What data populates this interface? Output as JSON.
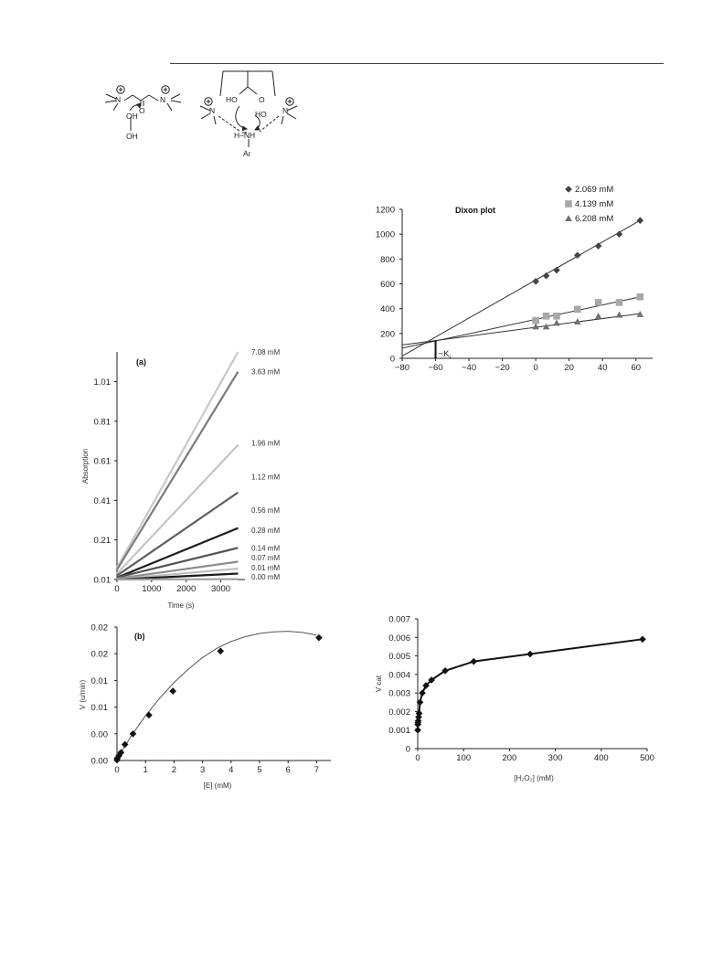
{
  "chart_data": [
    {
      "id": "dixon",
      "type": "scatter",
      "title": "Dixon plot",
      "xlabel": "",
      "ylabel": "",
      "xlim": [
        -80,
        70
      ],
      "ylim": [
        0,
        1200
      ],
      "xticks": [
        -80,
        -60,
        -40,
        -20,
        0,
        20,
        40,
        60
      ],
      "yticks": [
        0,
        200,
        400,
        600,
        800,
        1000,
        1200
      ],
      "x_tick_labels": [
        "−80",
        "−60",
        "−40",
        "−20",
        "0",
        "20",
        "40",
        "60"
      ],
      "y_tick_labels": [
        "0",
        "200",
        "400",
        "600",
        "800",
        "1000",
        "1200"
      ],
      "legend_position": "top-right",
      "grid": false,
      "annotation": "−K",
      "annotation_sub": "i",
      "ki_x": -60,
      "series": [
        {
          "name": "2.069 mM",
          "marker": "diamond",
          "color": "#444444",
          "x": [
            0,
            6.25,
            12.5,
            25,
            37.5,
            50,
            62.5
          ],
          "y": [
            620,
            665,
            710,
            830,
            905,
            1000,
            1110
          ],
          "fit": {
            "x0": -80,
            "y0": 18,
            "x1": 62.5,
            "y1": 1110
          }
        },
        {
          "name": "4.139 mM",
          "marker": "square",
          "color": "#a8a8a8",
          "x": [
            0,
            6.25,
            12.5,
            25,
            37.5,
            50,
            62.5
          ],
          "y": [
            305,
            340,
            340,
            395,
            450,
            450,
            495
          ],
          "fit": {
            "x0": -80,
            "y0": 82,
            "x1": 62.5,
            "y1": 495
          }
        },
        {
          "name": "6.208 mM",
          "marker": "triangle",
          "color": "#707070",
          "x": [
            0,
            6.25,
            12.5,
            25,
            37.5,
            50,
            62.5
          ],
          "y": [
            255,
            255,
            285,
            295,
            340,
            350,
            355
          ],
          "fit": {
            "x0": -80,
            "y0": 108,
            "x1": 62.5,
            "y1": 360
          }
        }
      ]
    },
    {
      "id": "panel-a",
      "type": "line",
      "title": "(a)",
      "xlabel": "Time (s)",
      "ylabel": "Absorption",
      "xlim": [
        0,
        3700
      ],
      "ylim": [
        0.01,
        1.16
      ],
      "xticks": [
        0,
        1000,
        2000,
        3000
      ],
      "yticks": [
        0.01,
        0.21,
        0.41,
        0.61,
        0.81,
        1.01
      ],
      "x_tick_labels": [
        "0",
        "1000",
        "2000",
        "3000"
      ],
      "y_tick_labels": [
        "0.01",
        "0.21",
        "0.41",
        "0.61",
        "0.81",
        "1.01"
      ],
      "grid": false,
      "series": [
        {
          "name": "7.08 mM",
          "color": "#c8c8c8",
          "x": [
            0,
            3500
          ],
          "y": [
            0.07,
            1.17
          ]
        },
        {
          "name": "3.63 mM",
          "color": "#7a7a7a",
          "x": [
            0,
            3500
          ],
          "y": [
            0.06,
            1.06
          ]
        },
        {
          "name": "1.96 mM",
          "color": "#c4c4c4",
          "x": [
            0,
            3500
          ],
          "y": [
            0.04,
            0.69
          ]
        },
        {
          "name": "1.12 mM",
          "color": "#5e5e5e",
          "x": [
            0,
            3500
          ],
          "y": [
            0.03,
            0.45
          ]
        },
        {
          "name": "0.56 mM",
          "color": "#1e1e1e",
          "x": [
            0,
            3500
          ],
          "y": [
            0.02,
            0.27
          ]
        },
        {
          "name": "0.28 mM",
          "color": "#555555",
          "x": [
            0,
            3500
          ],
          "y": [
            0.02,
            0.17
          ]
        },
        {
          "name": "0.14 mM",
          "color": "#8c8c8c",
          "x": [
            0,
            3500
          ],
          "y": [
            0.015,
            0.1
          ]
        },
        {
          "name": "0.07 mM",
          "color": "#bdbdbd",
          "x": [
            0,
            3500
          ],
          "y": [
            0.012,
            0.065
          ]
        },
        {
          "name": "0.01 mM",
          "color": "#1a1a1a",
          "x": [
            0,
            3500
          ],
          "y": [
            0.01,
            0.04
          ]
        },
        {
          "name": "0.00 mM",
          "color": "#a0a0a0",
          "x": [
            0,
            3500
          ],
          "y": [
            0.01,
            0.012
          ]
        }
      ],
      "label_y": [
        1.16,
        1.06,
        0.7,
        0.53,
        0.36,
        0.26,
        0.17,
        0.12,
        0.07,
        0.025
      ]
    },
    {
      "id": "panel-b",
      "type": "scatter",
      "title": "(b)",
      "xlabel": "[E] (mM)",
      "ylabel": "V (u/min)",
      "xlim": [
        0,
        7.5
      ],
      "ylim": [
        0,
        0.025
      ],
      "xticks": [
        0,
        1,
        2,
        3,
        4,
        5,
        6,
        7
      ],
      "yticks": [
        0,
        0.005,
        0.01,
        0.015,
        0.02,
        0.025
      ],
      "x_tick_labels": [
        "0",
        "1",
        "2",
        "3",
        "4",
        "5",
        "6",
        "7"
      ],
      "y_tick_labels": [
        "0.00",
        "0.00",
        "0.01",
        "0.01",
        "0.02",
        "0.02"
      ],
      "grid": false,
      "points": {
        "x": [
          0,
          0.01,
          0.07,
          0.14,
          0.28,
          0.56,
          1.12,
          1.96,
          3.63,
          7.08
        ],
        "y": [
          0.0001,
          0.0004,
          0.0009,
          0.0015,
          0.003,
          0.005,
          0.0085,
          0.013,
          0.0205,
          0.023
        ]
      },
      "curve": {
        "x": [
          0,
          0.5,
          1,
          1.5,
          2,
          2.5,
          3,
          3.5,
          4,
          4.5,
          5,
          5.5,
          6,
          6.5,
          7
        ],
        "y": [
          0.0003,
          0.0046,
          0.0084,
          0.0117,
          0.0146,
          0.0171,
          0.0193,
          0.021,
          0.0223,
          0.0232,
          0.0238,
          0.0241,
          0.0242,
          0.024,
          0.0235
        ]
      }
    },
    {
      "id": "vcat",
      "type": "line",
      "title": "",
      "xlabel": "[H₂O₂]  (mM)",
      "ylabel": "V cat",
      "xlim": [
        0,
        500
      ],
      "ylim": [
        0,
        0.007
      ],
      "xticks": [
        0,
        100,
        200,
        300,
        400,
        500
      ],
      "yticks": [
        0,
        0.001,
        0.002,
        0.003,
        0.004,
        0.005,
        0.006,
        0.007
      ],
      "x_tick_labels": [
        "0",
        "100",
        "200",
        "300",
        "400",
        "500"
      ],
      "y_tick_labels": [
        "0",
        "0.001",
        "0.002",
        "0.003",
        "0.004",
        "0.005",
        "0.006",
        "0.007"
      ],
      "grid": false,
      "x": [
        0.1,
        0.2,
        0.5,
        1,
        2,
        3,
        5,
        10,
        18,
        30,
        60,
        122,
        245,
        490
      ],
      "y": [
        0.001,
        0.0013,
        0.0014,
        0.0015,
        0.0017,
        0.0019,
        0.0025,
        0.003,
        0.0034,
        0.0037,
        0.0042,
        0.0047,
        0.0051,
        0.0059
      ]
    }
  ],
  "scheme": {
    "left": {
      "charges": [
        "+",
        "+"
      ],
      "atoms": [
        "N",
        "N",
        "O",
        "OH",
        "OH"
      ]
    },
    "right": {
      "charges": [
        "+",
        "+"
      ],
      "atoms": [
        "N",
        "N",
        "HO",
        "O",
        "HO",
        "H–N",
        "H",
        "Ar"
      ]
    }
  }
}
